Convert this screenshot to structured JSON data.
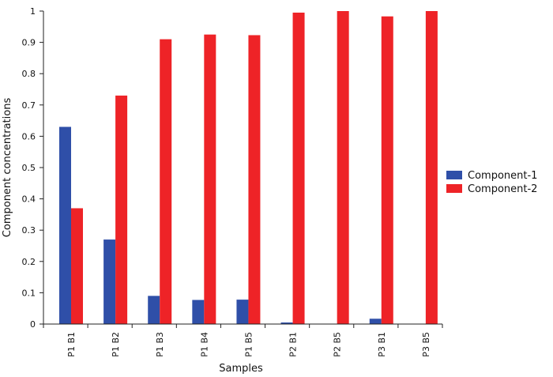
{
  "chart_data": {
    "type": "bar",
    "title": "",
    "xlabel": "Samples",
    "ylabel": "Component concentrations",
    "ylim": [
      0,
      1
    ],
    "yticks": [
      "0",
      "0.1",
      "0.2",
      "0.3",
      "0.4",
      "0.5",
      "0.6",
      "0.7",
      "0.8",
      "0.9",
      "1"
    ],
    "categories": [
      "P1 B1",
      "P1 B2",
      "P1 B3",
      "P1 B4",
      "P1 B5",
      "P2 B1",
      "P2 B5",
      "P3 B1",
      "P3 B5"
    ],
    "series": [
      {
        "name": "Component-1",
        "color": "#2f4fa8",
        "values": [
          0.63,
          0.27,
          0.09,
          0.077,
          0.078,
          0.005,
          0.0,
          0.017,
          0.0
        ]
      },
      {
        "name": "Component-2",
        "color": "#ee2327",
        "values": [
          0.37,
          0.73,
          0.91,
          0.925,
          0.923,
          0.995,
          1.0,
          0.983,
          1.0
        ]
      }
    ],
    "grid": false,
    "legend_position": "right"
  }
}
